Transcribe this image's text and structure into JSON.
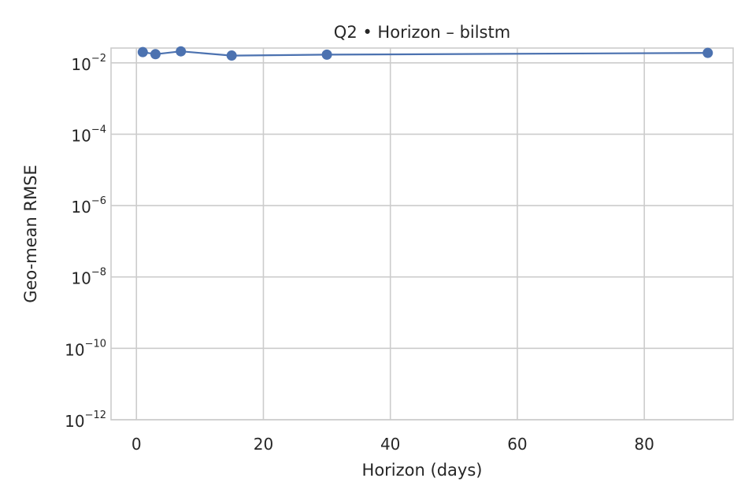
{
  "chart_data": {
    "type": "line",
    "title": "Q2 • Horizon – bilstm",
    "xlabel": "Horizon (days)",
    "ylabel": "Geo-mean RMSE",
    "y_scale": "log",
    "grid": true,
    "xlim": [
      -4,
      94
    ],
    "ylim": [
      1e-12,
      0.026
    ],
    "xticks": [
      0,
      20,
      40,
      60,
      80
    ],
    "xtick_labels": [
      "0",
      "20",
      "40",
      "60",
      "80"
    ],
    "yticks": [
      1e-12,
      1e-10,
      1e-08,
      1e-06,
      0.0001,
      0.01
    ],
    "ytick_labels": [
      {
        "base": "10",
        "exp": "−12"
      },
      {
        "base": "10",
        "exp": "−10"
      },
      {
        "base": "10",
        "exp": "−8"
      },
      {
        "base": "10",
        "exp": "−6"
      },
      {
        "base": "10",
        "exp": "−4"
      },
      {
        "base": "10",
        "exp": "−2"
      }
    ],
    "series": [
      {
        "color": "#4c72b0",
        "x": [
          1,
          3,
          7,
          15,
          30,
          90
        ],
        "y": [
          0.02,
          0.0175,
          0.021,
          0.016,
          0.017,
          0.019
        ]
      }
    ]
  }
}
